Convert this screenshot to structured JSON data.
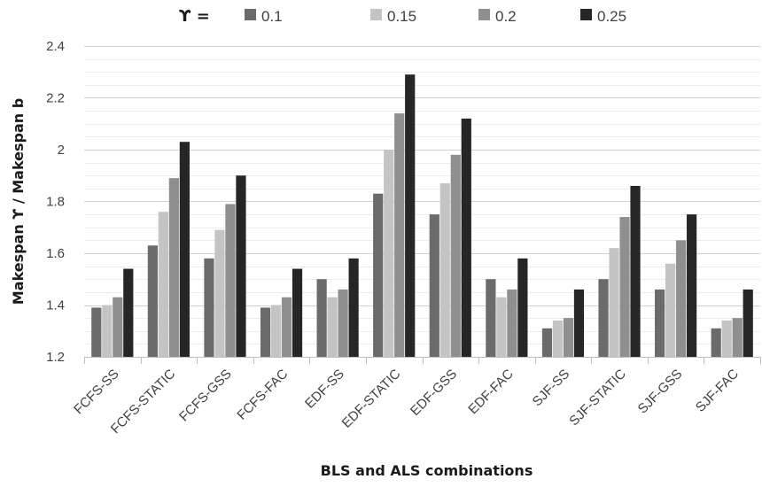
{
  "chart_data": {
    "type": "bar",
    "legend_title": "ϒ =",
    "legend_position": "top",
    "xlabel": "BLS and ALS combinations",
    "ylabel": "Makespan ϒ / Makespan b",
    "ylim": [
      1.2,
      2.4
    ],
    "yticks": [
      "1.2",
      "1.4",
      "1.6",
      "1.8",
      "2",
      "2.2",
      "2.4"
    ],
    "grid": true,
    "categories": [
      "FCFS-SS",
      "FCFS-STATIC",
      "FCFS-GSS",
      "FCFS-FAC",
      "EDF-SS",
      "EDF-STATIC",
      "EDF-GSS",
      "EDF-FAC",
      "SJF-SS",
      "SJF-STATIC",
      "SJF-GSS",
      "SJF-FAC"
    ],
    "series": [
      {
        "name": "0.1",
        "color": "#6b6b6b",
        "values": [
          1.39,
          1.63,
          1.58,
          1.39,
          1.5,
          1.83,
          1.75,
          1.5,
          1.31,
          1.5,
          1.46,
          1.31
        ]
      },
      {
        "name": "0.15",
        "color": "#c4c4c4",
        "values": [
          1.4,
          1.76,
          1.69,
          1.4,
          1.43,
          2.0,
          1.87,
          1.43,
          1.34,
          1.62,
          1.56,
          1.34
        ]
      },
      {
        "name": "0.2",
        "color": "#8f8f8f",
        "values": [
          1.43,
          1.89,
          1.79,
          1.43,
          1.46,
          2.14,
          1.98,
          1.46,
          1.35,
          1.74,
          1.65,
          1.35
        ]
      },
      {
        "name": "0.25",
        "color": "#262626",
        "values": [
          1.54,
          2.03,
          1.9,
          1.54,
          1.58,
          2.29,
          2.12,
          1.58,
          1.46,
          1.86,
          1.75,
          1.46
        ]
      }
    ]
  }
}
